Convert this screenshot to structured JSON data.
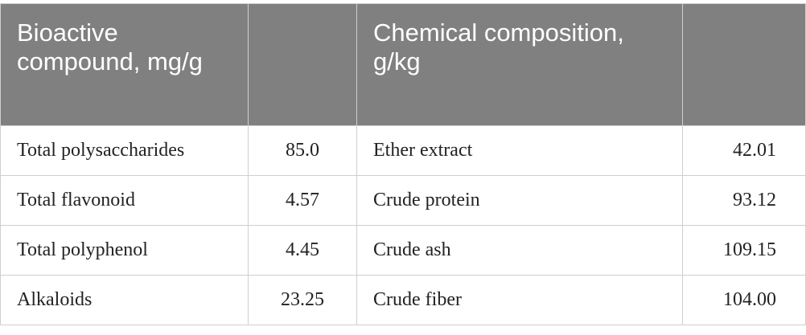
{
  "table": {
    "header": [
      "Bioactive compound, mg/g",
      "Chemical composition, g/kg"
    ],
    "rows": [
      [
        "Total polysaccharides",
        "85.0",
        "Ether extract",
        "42.01"
      ],
      [
        "Total flavonoid",
        "4.57",
        "Crude protein",
        "93.12"
      ],
      [
        "Total polyphenol",
        "4.45",
        "Crude ash",
        "109.15"
      ],
      [
        "Alkaloids",
        "23.25",
        "Crude fiber",
        "104.00"
      ]
    ]
  }
}
